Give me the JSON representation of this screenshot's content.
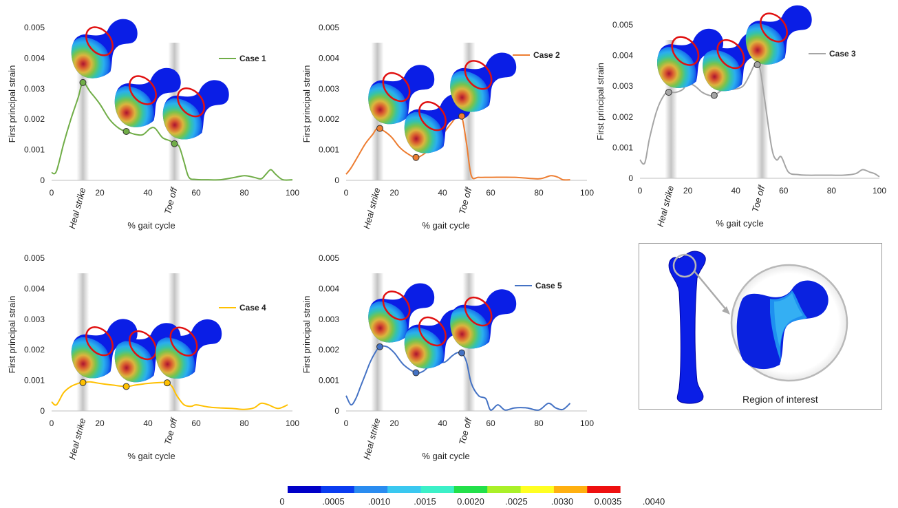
{
  "chart_data": [
    {
      "type": "line",
      "ylabel": "First principal strain",
      "xlabel": "% gait cycle",
      "xlim": [
        0,
        100
      ],
      "ylim": [
        0,
        0.005
      ],
      "xticks": [
        "0",
        "20",
        "40",
        "60",
        "80",
        "100"
      ],
      "yticks": [
        "0",
        "0.001",
        "0.002",
        "0.003",
        "0.004",
        "0.005"
      ],
      "phase_labels": [
        "Heal strike",
        "Toe off"
      ],
      "phase_x": [
        13,
        51
      ],
      "legend": "top-right",
      "series": [
        {
          "name": "Case 1",
          "color": "#70ad47",
          "x": [
            0,
            2,
            5,
            8,
            11,
            13,
            16,
            20,
            24,
            28,
            31,
            35,
            38,
            41,
            43,
            46,
            49,
            51,
            53,
            55,
            57,
            60,
            65,
            70,
            75,
            80,
            84,
            87,
            89,
            91,
            93,
            96,
            100
          ],
          "y": [
            0.00025,
            0.0003,
            0.0012,
            0.002,
            0.0027,
            0.0032,
            0.0029,
            0.0025,
            0.002,
            0.0017,
            0.0016,
            0.0015,
            0.0015,
            0.0017,
            0.0017,
            0.0014,
            0.0013,
            0.0012,
            0.0011,
            0.0006,
            0.0001,
            3e-05,
            2e-05,
            2e-05,
            8e-05,
            0.00015,
            0.0001,
            5e-05,
            0.0002,
            0.00035,
            0.0002,
            2e-05,
            2e-05
          ],
          "markers": [
            [
              13,
              0.0032
            ],
            [
              31,
              0.0016
            ],
            [
              51,
              0.0012
            ]
          ]
        },
        {
          "name": "Case 2",
          "color": "#ed7d31",
          "x": [
            0,
            2,
            5,
            8,
            11,
            13,
            16,
            19,
            22,
            25,
            29,
            33,
            37,
            41,
            44,
            46,
            48,
            50,
            52,
            55,
            60,
            70,
            80,
            85,
            88,
            90,
            93
          ],
          "y": [
            0.0002,
            0.0004,
            0.0008,
            0.0012,
            0.0015,
            0.0017,
            0.0016,
            0.0014,
            0.0011,
            0.0009,
            0.00075,
            0.0009,
            0.0012,
            0.0016,
            0.0019,
            0.0021,
            0.0021,
            0.0012,
            0.00015,
            0.0001,
            0.0001,
            0.0001,
            5e-05,
            0.00015,
            0.0001,
            2e-05,
            2e-05
          ],
          "markers": [
            [
              14,
              0.0017
            ],
            [
              29,
              0.00075
            ],
            [
              48,
              0.0021
            ]
          ]
        },
        {
          "name": "Case 3",
          "color": "#a5a5a5",
          "x": [
            0,
            2,
            4,
            7,
            10,
            12,
            15,
            18,
            20,
            23,
            26,
            29,
            31,
            35,
            39,
            43,
            46,
            48,
            50,
            52,
            55,
            57,
            59,
            62,
            66,
            70,
            75,
            80,
            85,
            90,
            93,
            96,
            98,
            100
          ],
          "y": [
            0.0006,
            0.0005,
            0.0013,
            0.0022,
            0.0027,
            0.0028,
            0.0028,
            0.0029,
            0.0031,
            0.003,
            0.0028,
            0.0027,
            0.0027,
            0.0029,
            0.0029,
            0.003,
            0.0034,
            0.0037,
            0.0036,
            0.0026,
            0.001,
            0.0006,
            0.0007,
            0.0002,
            0.00012,
            0.0001,
            0.0001,
            0.0001,
            0.0001,
            0.00015,
            0.00028,
            0.0002,
            0.00015,
            5e-05
          ],
          "markers": [
            [
              12,
              0.0028
            ],
            [
              31,
              0.0027
            ],
            [
              49,
              0.0037
            ]
          ]
        },
        {
          "name": "Case 4",
          "color": "#ffc000",
          "x": [
            0,
            2,
            5,
            8,
            11,
            13,
            16,
            20,
            25,
            31,
            35,
            40,
            45,
            48,
            50,
            52,
            55,
            58,
            60,
            65,
            70,
            75,
            80,
            84,
            87,
            90,
            94,
            98
          ],
          "y": [
            0.0003,
            0.0002,
            0.0006,
            0.0008,
            0.0009,
            0.00093,
            0.00095,
            0.0009,
            0.00085,
            0.0008,
            0.00085,
            0.0009,
            0.00093,
            0.00092,
            0.0008,
            0.0005,
            0.0002,
            0.00015,
            0.0002,
            0.00013,
            0.0001,
            8e-05,
            5e-05,
            0.0001,
            0.00025,
            0.0002,
            8e-05,
            0.0002
          ],
          "markers": [
            [
              13,
              0.00093
            ],
            [
              31,
              0.0008
            ],
            [
              48,
              0.00092
            ]
          ]
        },
        {
          "name": "Case 5",
          "color": "#4472c4",
          "x": [
            0,
            2,
            4,
            6,
            8,
            10,
            12,
            14,
            17,
            20,
            24,
            29,
            32,
            35,
            38,
            41,
            44,
            46,
            48,
            50,
            52,
            55,
            58,
            60,
            63,
            66,
            70,
            75,
            80,
            84,
            87,
            90,
            93
          ],
          "y": [
            0.0005,
            0.0002,
            0.0004,
            0.0008,
            0.0012,
            0.0016,
            0.0019,
            0.0021,
            0.0021,
            0.0019,
            0.0015,
            0.00125,
            0.0013,
            0.0015,
            0.0016,
            0.0016,
            0.0018,
            0.0019,
            0.0019,
            0.0016,
            0.0009,
            0.0005,
            0.0004,
            3e-05,
            0.0002,
            3e-05,
            0.0001,
            0.0001,
            3e-05,
            0.00025,
            0.0001,
            5e-05,
            0.00025
          ],
          "markers": [
            [
              14,
              0.0021
            ],
            [
              29,
              0.00125
            ],
            [
              48,
              0.0019
            ]
          ]
        }
      ]
    },
    {
      "type": "heatmap",
      "colorbar": {
        "ticks": [
          "0",
          ".0005",
          ".0010",
          ".0015",
          "0.0020",
          ".0025",
          ".0030",
          "0.0035",
          ".0040"
        ],
        "colors": [
          "#0000c8",
          "#0a3cf0",
          "#2a8cf0",
          "#3ac8f0",
          "#3cf0c8",
          "#22e04a",
          "#aaf028",
          "#ffff22",
          "#ffb010",
          "#ee1010",
          "#ffffff"
        ]
      }
    }
  ],
  "roi": {
    "label": "Region of interest"
  }
}
